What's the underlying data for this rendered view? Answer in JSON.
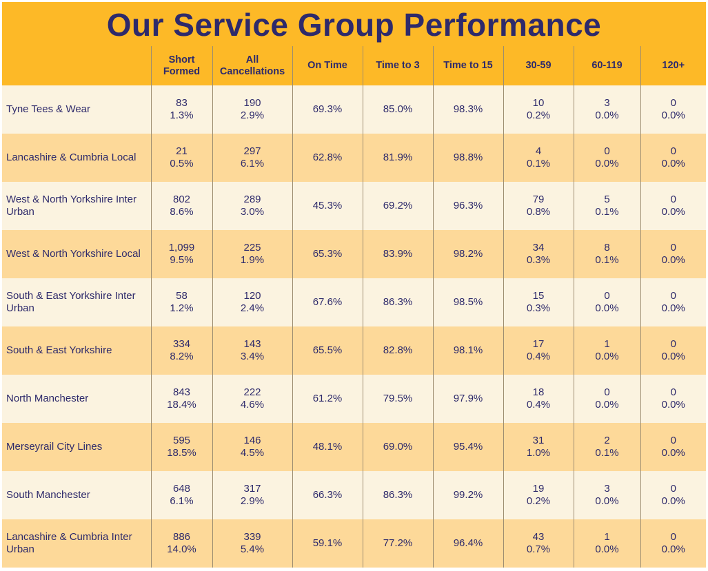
{
  "title": "Our Service Group Performance",
  "colors": {
    "header_bg": "#FDB927",
    "title_text": "#2E2A6B",
    "row_light": "#FBF3E0",
    "row_dark": "#FDD999"
  },
  "headers": [
    "",
    "Short Formed",
    "All Cancellations",
    "On Time",
    "Time to 3",
    "Time to 15",
    "30-59",
    "60-119",
    "120+"
  ],
  "rows": [
    {
      "name": "Tyne Tees & Wear",
      "short_count": "83",
      "short_pct": "1.3%",
      "cancel_count": "190",
      "cancel_pct": "2.9%",
      "on_time": "69.3%",
      "time3": "85.0%",
      "time15": "98.3%",
      "d30_count": "10",
      "d30_pct": "0.2%",
      "d60_count": "3",
      "d60_pct": "0.0%",
      "d120_count": "0",
      "d120_pct": "0.0%"
    },
    {
      "name": "Lancashire & Cumbria Local",
      "short_count": "21",
      "short_pct": "0.5%",
      "cancel_count": "297",
      "cancel_pct": "6.1%",
      "on_time": "62.8%",
      "time3": "81.9%",
      "time15": "98.8%",
      "d30_count": "4",
      "d30_pct": "0.1%",
      "d60_count": "0",
      "d60_pct": "0.0%",
      "d120_count": "0",
      "d120_pct": "0.0%"
    },
    {
      "name": "West & North Yorkshire Inter Urban",
      "short_count": "802",
      "short_pct": "8.6%",
      "cancel_count": "289",
      "cancel_pct": "3.0%",
      "on_time": "45.3%",
      "time3": "69.2%",
      "time15": "96.3%",
      "d30_count": "79",
      "d30_pct": "0.8%",
      "d60_count": "5",
      "d60_pct": "0.1%",
      "d120_count": "0",
      "d120_pct": "0.0%"
    },
    {
      "name": "West & North Yorkshire Local",
      "short_count": "1,099",
      "short_pct": "9.5%",
      "cancel_count": "225",
      "cancel_pct": "1.9%",
      "on_time": "65.3%",
      "time3": "83.9%",
      "time15": "98.2%",
      "d30_count": "34",
      "d30_pct": "0.3%",
      "d60_count": "8",
      "d60_pct": "0.1%",
      "d120_count": "0",
      "d120_pct": "0.0%"
    },
    {
      "name": "South & East Yorkshire Inter Urban",
      "short_count": "58",
      "short_pct": "1.2%",
      "cancel_count": "120",
      "cancel_pct": "2.4%",
      "on_time": "67.6%",
      "time3": "86.3%",
      "time15": "98.5%",
      "d30_count": "15",
      "d30_pct": "0.3%",
      "d60_count": "0",
      "d60_pct": "0.0%",
      "d120_count": "0",
      "d120_pct": "0.0%"
    },
    {
      "name": "South & East Yorkshire",
      "short_count": "334",
      "short_pct": "8.2%",
      "cancel_count": "143",
      "cancel_pct": "3.4%",
      "on_time": "65.5%",
      "time3": "82.8%",
      "time15": "98.1%",
      "d30_count": "17",
      "d30_pct": "0.4%",
      "d60_count": "1",
      "d60_pct": "0.0%",
      "d120_count": "0",
      "d120_pct": "0.0%"
    },
    {
      "name": "North Manchester",
      "short_count": "843",
      "short_pct": "18.4%",
      "cancel_count": "222",
      "cancel_pct": "4.6%",
      "on_time": "61.2%",
      "time3": "79.5%",
      "time15": "97.9%",
      "d30_count": "18",
      "d30_pct": "0.4%",
      "d60_count": "0",
      "d60_pct": "0.0%",
      "d120_count": "0",
      "d120_pct": "0.0%"
    },
    {
      "name": "Merseyrail City Lines",
      "short_count": "595",
      "short_pct": "18.5%",
      "cancel_count": "146",
      "cancel_pct": "4.5%",
      "on_time": "48.1%",
      "time3": "69.0%",
      "time15": "95.4%",
      "d30_count": "31",
      "d30_pct": "1.0%",
      "d60_count": "2",
      "d60_pct": "0.1%",
      "d120_count": "0",
      "d120_pct": "0.0%"
    },
    {
      "name": "South Manchester",
      "short_count": "648",
      "short_pct": "6.1%",
      "cancel_count": "317",
      "cancel_pct": "2.9%",
      "on_time": "66.3%",
      "time3": "86.3%",
      "time15": "99.2%",
      "d30_count": "19",
      "d30_pct": "0.2%",
      "d60_count": "3",
      "d60_pct": "0.0%",
      "d120_count": "0",
      "d120_pct": "0.0%"
    },
    {
      "name": "Lancashire & Cumbria Inter Urban",
      "short_count": "886",
      "short_pct": "14.0%",
      "cancel_count": "339",
      "cancel_pct": "5.4%",
      "on_time": "59.1%",
      "time3": "77.2%",
      "time15": "96.4%",
      "d30_count": "43",
      "d30_pct": "0.7%",
      "d60_count": "1",
      "d60_pct": "0.0%",
      "d120_count": "0",
      "d120_pct": "0.0%"
    }
  ]
}
